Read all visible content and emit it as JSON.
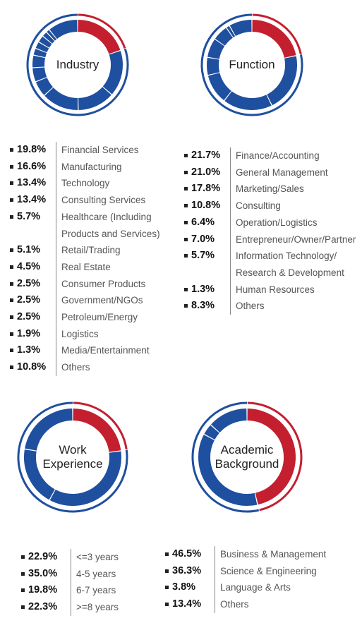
{
  "chart_data": [
    {
      "type": "pie",
      "title": "Industry",
      "categories": [
        "Financial Services",
        "Manufacturing",
        "Technology",
        "Consulting Services",
        "Healthcare (Including Products and Services)",
        "Retail/Trading",
        "Real Estate",
        "Consumer Products",
        "Government/NGOs",
        "Petroleum/Energy",
        "Logistics",
        "Media/Entertainment",
        "Others"
      ],
      "values": [
        19.8,
        16.6,
        13.4,
        13.4,
        5.7,
        5.1,
        4.5,
        2.5,
        2.5,
        2.5,
        1.9,
        1.3,
        10.8
      ],
      "value_labels": [
        "19.8%",
        "16.6%",
        "13.4%",
        "13.4%",
        "5.7%",
        "5.1%",
        "4.5%",
        "2.5%",
        "2.5%",
        "2.5%",
        "1.9%",
        "1.3%",
        "10.8%"
      ],
      "colors": [
        "#c41f2f",
        "#1f4f9f",
        "#1f4f9f",
        "#1f4f9f",
        "#1f4f9f",
        "#1f4f9f",
        "#1f4f9f",
        "#1f4f9f",
        "#1f4f9f",
        "#1f4f9f",
        "#1f4f9f",
        "#1f4f9f",
        "#1f4f9f"
      ]
    },
    {
      "type": "pie",
      "title": "Function",
      "categories": [
        "Finance/Accounting",
        "General Management",
        "Marketing/Sales",
        "Consulting",
        "Operation/Logistics",
        "Entrepreneur/Owner/Partner",
        "Information Technology/ Research & Development",
        "Human Resources",
        "Others"
      ],
      "values": [
        21.7,
        21.0,
        17.8,
        10.8,
        6.4,
        7.0,
        5.7,
        1.3,
        8.3
      ],
      "value_labels": [
        "21.7%",
        "21.0%",
        "17.8%",
        "10.8%",
        "6.4%",
        "7.0%",
        "5.7%",
        "1.3%",
        "8.3%"
      ],
      "colors": [
        "#c41f2f",
        "#1f4f9f",
        "#1f4f9f",
        "#1f4f9f",
        "#1f4f9f",
        "#1f4f9f",
        "#1f4f9f",
        "#1f4f9f",
        "#1f4f9f"
      ]
    },
    {
      "type": "pie",
      "title": "Work Experience",
      "categories": [
        "<=3 years",
        "4-5 years",
        "6-7 years",
        ">=8 years"
      ],
      "values": [
        22.9,
        35.0,
        19.8,
        22.3
      ],
      "value_labels": [
        "22.9%",
        "35.0%",
        "19.8%",
        "22.3%"
      ],
      "colors": [
        "#c41f2f",
        "#1f4f9f",
        "#1f4f9f",
        "#1f4f9f"
      ]
    },
    {
      "type": "pie",
      "title": "Academic Background",
      "categories": [
        "Business & Management",
        "Science & Engineering",
        "Language & Arts",
        "Others"
      ],
      "values": [
        46.5,
        36.3,
        3.8,
        13.4
      ],
      "value_labels": [
        "46.5%",
        "36.3%",
        "3.8%",
        "13.4%"
      ],
      "colors": [
        "#c41f2f",
        "#1f4f9f",
        "#1f4f9f",
        "#1f4f9f"
      ]
    }
  ]
}
